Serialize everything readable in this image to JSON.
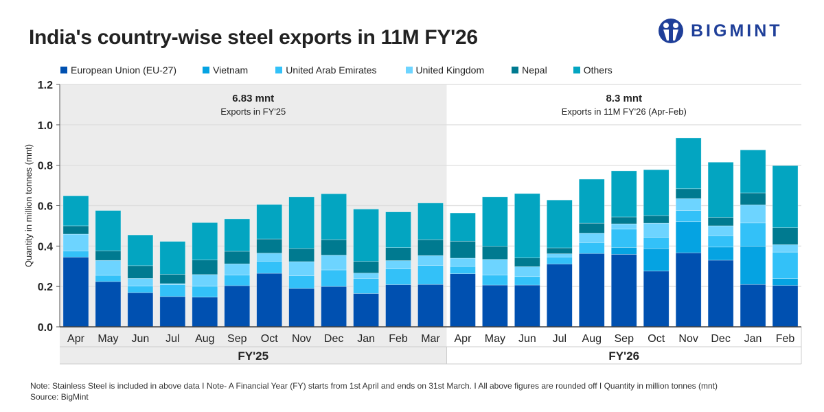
{
  "title": "India's country-wise steel exports in 11M FY'26",
  "logo": {
    "text": "BIGMINT",
    "color": "#1f3f99"
  },
  "notes": {
    "note": "Note: Stainless Steel is included in above data  I  Note- A Financial Year (FY) starts from 1st April and ends on 31st March.  I  All above figures are rounded off  I  Quantity in million tonnes (mnt)",
    "source": "Source: BigMint"
  },
  "chart_data": {
    "type": "bar",
    "stacked": true,
    "title": "India's country-wise steel exports in 11M FY'26",
    "xlabel": "",
    "ylabel": "Quantity in million tonnes (mnt)",
    "ylim": [
      0,
      1.2
    ],
    "yticks": [
      "0.0",
      "0.2",
      "0.4",
      "0.6",
      "0.8",
      "1.0",
      "1.2"
    ],
    "grid": true,
    "legend_position": "top",
    "categories": [
      "Apr",
      "May",
      "Jun",
      "Jul",
      "Aug",
      "Sep",
      "Oct",
      "Nov",
      "Dec",
      "Jan",
      "Feb",
      "Mar",
      "Apr",
      "May",
      "Jun",
      "Jul",
      "Aug",
      "Sep",
      "Oct",
      "Nov",
      "Dec",
      "Jan",
      "Feb"
    ],
    "groups": [
      {
        "label": "FY'25",
        "count": 12,
        "shaded": true,
        "total_value": "6.83 mnt",
        "total_caption": "Exports in FY'25"
      },
      {
        "label": "FY'26",
        "count": 11,
        "shaded": false,
        "total_value": "8.3 mnt",
        "total_caption": "Exports in 11M FY'26 (Apr-Feb)"
      }
    ],
    "series": [
      {
        "name": "European Union (EU-27)",
        "color": "#0050b0",
        "values": [
          0.345,
          0.224,
          0.169,
          0.15,
          0.147,
          0.204,
          0.265,
          0.19,
          0.2,
          0.165,
          0.209,
          0.21,
          0.263,
          0.207,
          0.207,
          0.311,
          0.363,
          0.359,
          0.276,
          0.367,
          0.33,
          0.21,
          0.205
        ]
      },
      {
        "name": "Vietnam",
        "color": "#05a3e2",
        "values": [
          0,
          0,
          0,
          0,
          0,
          0,
          0,
          0,
          0,
          0,
          0,
          0,
          0,
          0,
          0,
          0,
          0,
          0.034,
          0.112,
          0.154,
          0.065,
          0.189,
          0.034
        ]
      },
      {
        "name": "United Arab Emirates",
        "color": "#33c1f8",
        "values": [
          0.031,
          0.031,
          0.033,
          0.059,
          0.054,
          0.052,
          0.06,
          0.063,
          0.082,
          0.075,
          0.078,
          0.094,
          0.036,
          0.049,
          0.042,
          0.035,
          0.054,
          0.091,
          0.055,
          0.055,
          0.056,
          0.115,
          0.131
        ]
      },
      {
        "name": "United Kingdom",
        "color": "#6dd4ff",
        "values": [
          0.083,
          0.074,
          0.038,
          0.005,
          0.058,
          0.056,
          0.04,
          0.07,
          0.073,
          0.026,
          0.041,
          0.049,
          0.041,
          0.078,
          0.049,
          0.016,
          0.047,
          0.026,
          0.07,
          0.059,
          0.049,
          0.09,
          0.037
        ]
      },
      {
        "name": "Nepal",
        "color": "#007a90",
        "values": [
          0.041,
          0.048,
          0.063,
          0.046,
          0.072,
          0.062,
          0.07,
          0.065,
          0.077,
          0.058,
          0.064,
          0.079,
          0.084,
          0.065,
          0.043,
          0.029,
          0.049,
          0.034,
          0.038,
          0.049,
          0.042,
          0.059,
          0.084
        ]
      },
      {
        "name": "Others",
        "color": "#03a5c1",
        "values": [
          0.149,
          0.199,
          0.152,
          0.163,
          0.185,
          0.16,
          0.171,
          0.255,
          0.227,
          0.259,
          0.177,
          0.181,
          0.14,
          0.244,
          0.319,
          0.237,
          0.218,
          0.228,
          0.227,
          0.251,
          0.273,
          0.213,
          0.307
        ]
      }
    ]
  }
}
